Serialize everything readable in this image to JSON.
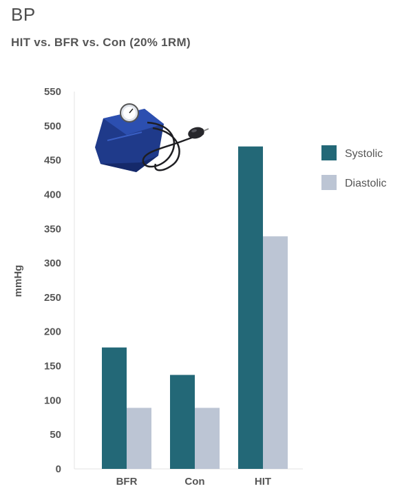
{
  "chart_data": {
    "type": "bar",
    "title": "BP",
    "subtitle": "HIT vs. BFR vs. Con (20% 1RM)",
    "xlabel": "",
    "ylabel": "mmHg",
    "ylim": [
      0,
      550
    ],
    "yticks": [
      0,
      50,
      100,
      150,
      200,
      250,
      300,
      350,
      400,
      450,
      500,
      550
    ],
    "categories": [
      "BFR",
      "Con",
      "HIT"
    ],
    "series": [
      {
        "name": "Systolic",
        "color": "#236877",
        "values": [
          177,
          137,
          470
        ]
      },
      {
        "name": "Diastolic",
        "color": "#bcc5d4",
        "values": [
          89,
          89,
          339
        ]
      }
    ],
    "legend_position": "right",
    "grid": false,
    "illustration_icon": "sphygmomanometer-icon"
  }
}
